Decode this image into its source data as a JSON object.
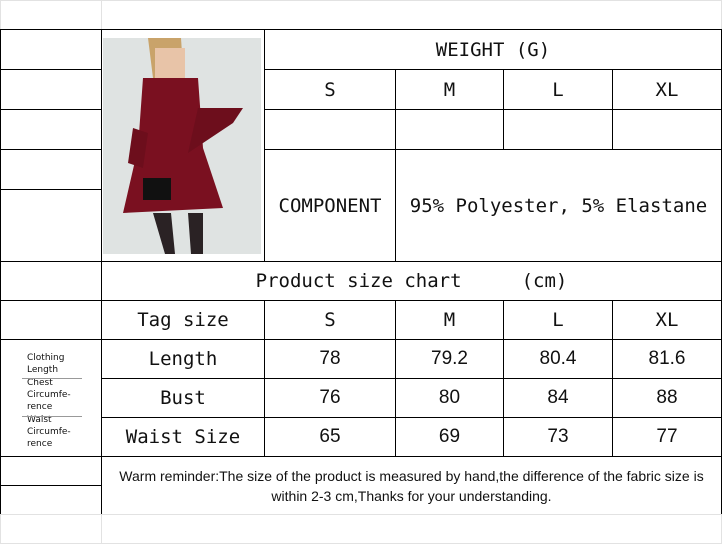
{
  "weight": {
    "title": "WEIGHT (G)",
    "sizes": [
      "S",
      "M",
      "L",
      "XL"
    ]
  },
  "component": {
    "label": "COMPONENT",
    "value": "95% Polyester, 5% Elastane"
  },
  "chart": {
    "title": "Product size chart",
    "unit": "(cm)",
    "tag_label": "Tag size",
    "sizes": [
      "S",
      "M",
      "L",
      "XL"
    ],
    "rows": [
      {
        "label": "Length",
        "values": [
          "78",
          "79.2",
          "80.4",
          "81.6"
        ]
      },
      {
        "label": "Bust",
        "values": [
          "76",
          "80",
          "84",
          "88"
        ]
      },
      {
        "label": "Waist Size",
        "values": [
          "65",
          "69",
          "73",
          "77"
        ]
      }
    ]
  },
  "side_labels": [
    "Clothing Length",
    "Chest Circumfe- rence",
    "Waist Circumfe- rence"
  ],
  "reminder": "Warm reminder:The size of the product is measured by hand,the difference of the fabric size is within 2-3 cm,Thanks for your understanding.",
  "colors": {
    "dress": "#7a1020",
    "background": "#dfe3e2"
  }
}
